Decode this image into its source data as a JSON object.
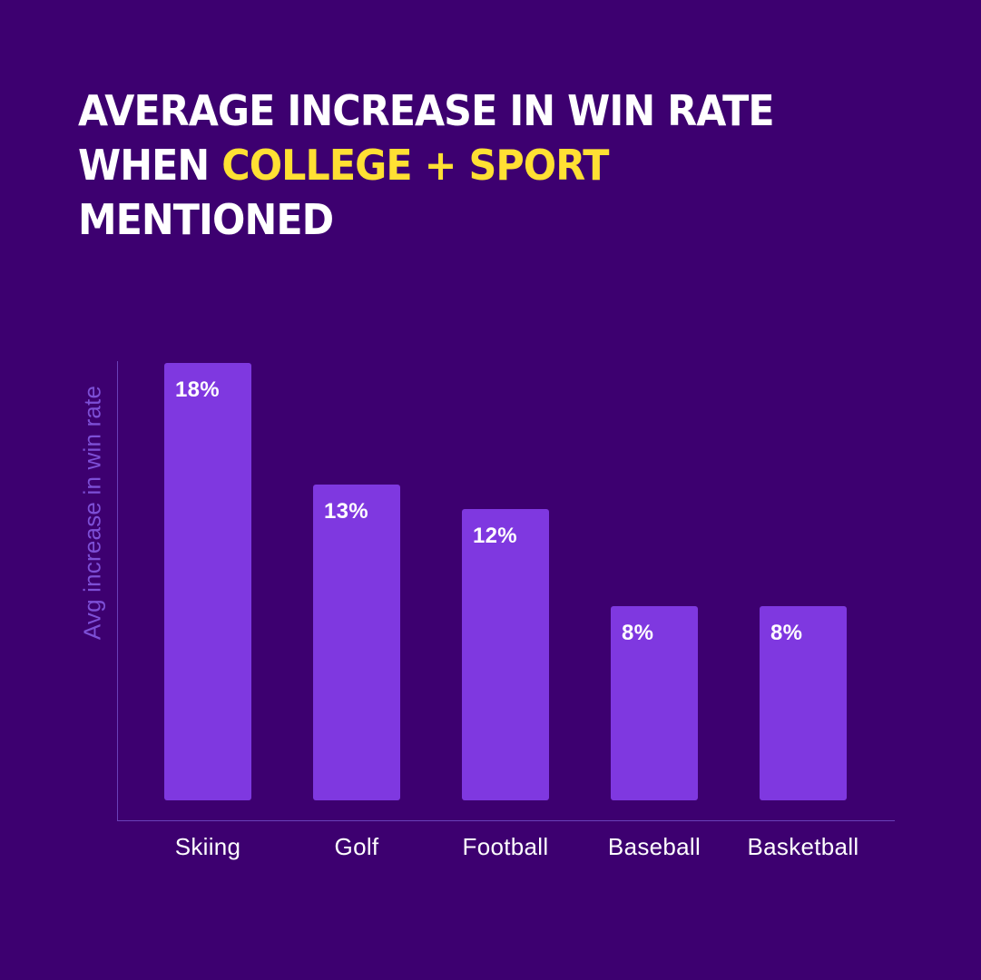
{
  "title": {
    "line1": "AVERAGE INCREASE IN WIN RATE",
    "line2_prefix": "WHEN",
    "line2_highlight": "COLLEGE + SPORT",
    "line3": "MENTIONED",
    "highlight_color": "#ffe033"
  },
  "colors": {
    "background": "#3d0070",
    "bar": "#7f38e0",
    "axis_label": "#7d4fd6"
  },
  "chart_data": {
    "type": "bar",
    "ylabel": "Avg increase in win rate",
    "categories": [
      "Skiing",
      "Golf",
      "Football",
      "Baseball",
      "Basketball"
    ],
    "values": [
      18,
      13,
      12,
      8,
      8
    ],
    "value_labels": [
      "18%",
      "13%",
      "12%",
      "8%",
      "8%"
    ],
    "ylim": [
      0,
      18
    ],
    "grid": false,
    "legend": "none"
  }
}
